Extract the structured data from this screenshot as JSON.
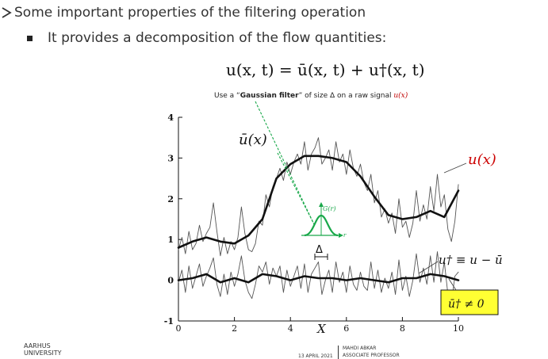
{
  "slide": {
    "bullet1": "Some important properties of the filtering operation",
    "bullet2": "It provides a decomposition of the flow quantities:",
    "equation": "u(x, t) = ū(x, t) + u†(x, t)",
    "caption_pre": "Use a “",
    "caption_bold": "Gaussian filter",
    "caption_mid": "” of size Δ  on a raw signal ",
    "caption_signal": "u(x)",
    "label_ubar": "ū(x)",
    "label_u": "u(x)",
    "label_udagger_def": "u† ≡ u − ū",
    "label_box": "ū† ≠ 0",
    "label_gauss": "G(r)",
    "label_r": "r",
    "label_delta": "Δ",
    "xlabel": "X"
  },
  "footer": {
    "institution_line1": "AARHUS",
    "institution_line2": "UNIVERSITY",
    "date": "13 APRIL 2021",
    "name_line1": "MAHDI ABKAR",
    "name_line2": "ASSOCIATE PROFESSOR"
  },
  "colors": {
    "accent_red": "#cc0000",
    "guide_green": "#19a84a",
    "box_yellow": "#ffff33"
  },
  "chart_data": {
    "type": "line",
    "xlim": [
      0,
      10
    ],
    "ylim": [
      -1,
      4
    ],
    "xticks": [
      "0",
      "2",
      "4",
      "6",
      "8",
      "10"
    ],
    "yticks": [
      "-1",
      "0",
      "1",
      "2",
      "3",
      "4"
    ],
    "series": [
      {
        "name": "u(x)",
        "style": "thin",
        "x": [
          0.0,
          0.125,
          0.25,
          0.375,
          0.5,
          0.625,
          0.75,
          0.875,
          1.0,
          1.125,
          1.25,
          1.375,
          1.5,
          1.625,
          1.75,
          1.875,
          2.0,
          2.125,
          2.25,
          2.375,
          2.5,
          2.625,
          2.75,
          2.875,
          3.0,
          3.125,
          3.25,
          3.375,
          3.5,
          3.625,
          3.75,
          3.875,
          4.0,
          4.125,
          4.25,
          4.375,
          4.5,
          4.625,
          4.75,
          4.875,
          5.0,
          5.125,
          5.25,
          5.375,
          5.5,
          5.625,
          5.75,
          5.875,
          6.0,
          6.125,
          6.25,
          6.375,
          6.5,
          6.625,
          6.75,
          6.875,
          7.0,
          7.125,
          7.25,
          7.375,
          7.5,
          7.625,
          7.75,
          7.875,
          8.0,
          8.125,
          8.25,
          8.375,
          8.5,
          8.625,
          8.75,
          8.875,
          9.0,
          9.125,
          9.25,
          9.375,
          9.5,
          9.625,
          9.75,
          9.875,
          10.0
        ],
        "y": [
          0.75,
          1.05,
          0.65,
          1.2,
          0.75,
          0.9,
          1.35,
          0.95,
          1.15,
          1.3,
          1.9,
          1.2,
          0.6,
          1.05,
          0.65,
          0.95,
          0.75,
          1.05,
          1.8,
          1.15,
          0.75,
          0.7,
          0.9,
          1.45,
          1.35,
          2.1,
          1.8,
          2.3,
          2.5,
          2.75,
          2.45,
          2.9,
          2.6,
          2.9,
          3.1,
          2.85,
          3.4,
          2.7,
          3.1,
          3.25,
          3.5,
          2.85,
          3.0,
          3.2,
          2.7,
          3.4,
          2.9,
          3.1,
          2.6,
          3.2,
          2.75,
          2.55,
          2.85,
          2.4,
          2.2,
          2.6,
          1.9,
          2.2,
          1.55,
          1.75,
          1.4,
          1.65,
          1.15,
          2.0,
          1.3,
          1.45,
          1.05,
          1.4,
          2.2,
          1.45,
          1.85,
          1.5,
          2.3,
          1.7,
          2.6,
          1.8,
          2.1,
          1.25,
          0.95,
          1.45,
          2.35
        ]
      },
      {
        "name": "ū(x)",
        "style": "thick",
        "x": [
          0.0,
          0.5,
          1.0,
          1.5,
          2.0,
          2.5,
          3.0,
          3.5,
          4.0,
          4.5,
          5.0,
          5.5,
          6.0,
          6.5,
          7.0,
          7.5,
          8.0,
          8.5,
          9.0,
          9.5,
          10.0
        ],
        "y": [
          0.8,
          0.95,
          1.05,
          0.95,
          0.9,
          1.1,
          1.5,
          2.5,
          2.85,
          3.05,
          3.05,
          3.0,
          2.9,
          2.55,
          2.05,
          1.6,
          1.5,
          1.55,
          1.7,
          1.55,
          2.2
        ]
      },
      {
        "name": "u†",
        "style": "thin",
        "x": [
          0.0,
          0.125,
          0.25,
          0.375,
          0.5,
          0.625,
          0.75,
          0.875,
          1.0,
          1.125,
          1.25,
          1.375,
          1.5,
          1.625,
          1.75,
          1.875,
          2.0,
          2.125,
          2.25,
          2.375,
          2.5,
          2.625,
          2.75,
          2.875,
          3.0,
          3.125,
          3.25,
          3.375,
          3.5,
          3.625,
          3.75,
          3.875,
          4.0,
          4.125,
          4.25,
          4.375,
          4.5,
          4.625,
          4.75,
          4.875,
          5.0,
          5.125,
          5.25,
          5.375,
          5.5,
          5.625,
          5.75,
          5.875,
          6.0,
          6.125,
          6.25,
          6.375,
          6.5,
          6.625,
          6.75,
          6.875,
          7.0,
          7.125,
          7.25,
          7.375,
          7.5,
          7.625,
          7.75,
          7.875,
          8.0,
          8.125,
          8.25,
          8.375,
          8.5,
          8.625,
          8.75,
          8.875,
          9.0,
          9.125,
          9.25,
          9.375,
          9.5,
          9.625,
          9.75,
          9.875,
          10.0
        ],
        "y": [
          -0.05,
          0.25,
          -0.3,
          0.35,
          -0.2,
          0.1,
          0.4,
          -0.15,
          0.1,
          0.3,
          0.55,
          -0.1,
          -0.4,
          0.15,
          -0.35,
          0.2,
          -0.15,
          0.15,
          0.6,
          0.0,
          -0.3,
          -0.45,
          -0.1,
          0.35,
          0.2,
          0.45,
          -0.1,
          0.3,
          0.1,
          0.35,
          -0.3,
          0.25,
          -0.15,
          0.1,
          0.35,
          -0.2,
          0.4,
          -0.3,
          0.15,
          0.3,
          0.45,
          -0.35,
          0.0,
          0.25,
          -0.3,
          0.45,
          -0.05,
          0.2,
          -0.3,
          0.35,
          -0.1,
          -0.25,
          0.2,
          -0.15,
          -0.25,
          0.45,
          -0.2,
          0.25,
          -0.3,
          0.05,
          -0.2,
          0.2,
          -0.35,
          0.5,
          -0.25,
          0.1,
          -0.4,
          0.0,
          0.65,
          -0.05,
          0.3,
          -0.1,
          0.6,
          -0.05,
          0.7,
          -0.05,
          0.45,
          -0.35,
          -0.55,
          0.1,
          0.2
        ]
      },
      {
        "name": "ū†",
        "style": "thick",
        "x": [
          0.0,
          0.5,
          1.0,
          1.5,
          2.0,
          2.5,
          3.0,
          3.5,
          4.0,
          4.5,
          5.0,
          5.5,
          6.0,
          6.5,
          7.0,
          7.5,
          8.0,
          8.5,
          9.0,
          9.5,
          10.0
        ],
        "y": [
          0.0,
          0.05,
          0.15,
          -0.05,
          0.05,
          -0.05,
          0.15,
          0.1,
          0.0,
          0.1,
          0.05,
          0.05,
          0.0,
          0.05,
          0.0,
          -0.05,
          0.05,
          0.05,
          0.15,
          0.1,
          0.0
        ]
      }
    ]
  }
}
